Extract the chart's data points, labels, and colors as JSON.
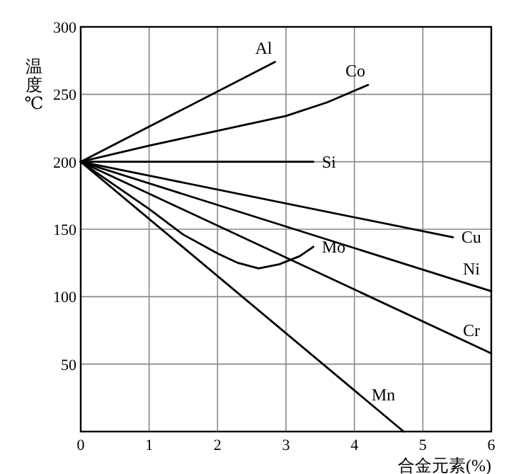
{
  "chart_data": {
    "type": "line",
    "xlabel": "合金元素(%)",
    "ylabel": "温度℃",
    "xlim": [
      0,
      6
    ],
    "ylim": [
      0,
      300
    ],
    "xticks": [
      0,
      1,
      2,
      3,
      4,
      5,
      6
    ],
    "yticks": [
      50,
      100,
      150,
      200,
      250,
      300
    ],
    "grid": true,
    "marker": "none",
    "line_style": "solid",
    "color": "#000000",
    "series": [
      {
        "name": "Al",
        "x": [
          0,
          2.84
        ],
        "values": [
          200,
          274
        ]
      },
      {
        "name": "Co",
        "x": [
          0,
          1,
          2,
          3,
          3.6,
          4.2
        ],
        "values": [
          200,
          212,
          223,
          234,
          244,
          257
        ]
      },
      {
        "name": "Si",
        "x": [
          0,
          3.4
        ],
        "values": [
          200,
          200
        ]
      },
      {
        "name": "Cu",
        "x": [
          0,
          5.44
        ],
        "values": [
          200,
          144
        ]
      },
      {
        "name": "Ni",
        "x": [
          0,
          6
        ],
        "values": [
          200,
          104
        ]
      },
      {
        "name": "Mo",
        "x": [
          0,
          1,
          1.5,
          2,
          2.3,
          2.6,
          2.9,
          3.2,
          3.4
        ],
        "values": [
          200,
          165,
          146,
          132,
          125,
          121,
          124,
          130,
          137
        ]
      },
      {
        "name": "Cr",
        "x": [
          0,
          6
        ],
        "values": [
          200,
          58
        ]
      },
      {
        "name": "Mn",
        "x": [
          0,
          4.72
        ],
        "values": [
          200,
          0
        ]
      }
    ]
  }
}
